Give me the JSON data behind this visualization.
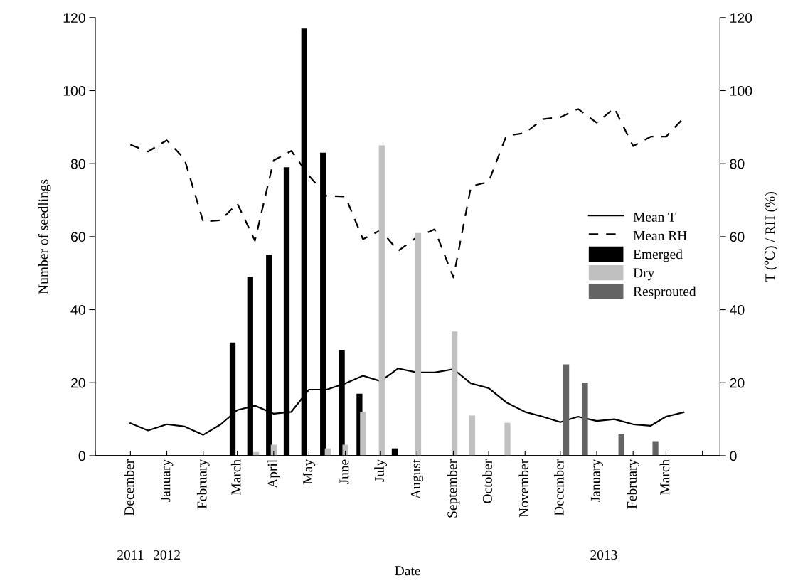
{
  "chart_data": {
    "type": "bar",
    "xlabel": "Date",
    "ylabel": "Number of seedlings",
    "y2label": "T (℃) / RH (%)",
    "xlim": [
      "2011-11-01",
      "2013-04-16"
    ],
    "xticks": [
      {
        "value": "2011-11-01",
        "label": null
      },
      {
        "value": "2011-12-01",
        "label": "December"
      },
      {
        "value": "2012-01-01",
        "label": "January"
      },
      {
        "value": "2012-02-01",
        "label": "February"
      },
      {
        "value": "2012-03-01",
        "label": "March"
      },
      {
        "value": "2012-04-01",
        "label": "April"
      },
      {
        "value": "2012-05-01",
        "label": "May"
      },
      {
        "value": "2012-06-01",
        "label": "June"
      },
      {
        "value": "2012-07-01",
        "label": "July"
      },
      {
        "value": "2012-08-01",
        "label": "August"
      },
      {
        "value": "2012-09-01",
        "label": "September"
      },
      {
        "value": "2012-10-01",
        "label": "October"
      },
      {
        "value": "2012-11-01",
        "label": "November"
      },
      {
        "value": "2012-12-01",
        "label": "December"
      },
      {
        "value": "2013-01-01",
        "label": "January"
      },
      {
        "value": "2013-02-01",
        "label": "February"
      },
      {
        "value": "2013-03-01",
        "label": "March"
      },
      {
        "value": "2013-04-01",
        "label": null
      }
    ],
    "ylim": [
      0,
      120
    ],
    "yticks": [
      0,
      20,
      40,
      60,
      80,
      100,
      120
    ],
    "y2lim": [
      0,
      120
    ],
    "y2ticks": [
      0,
      20,
      40,
      60,
      80,
      100,
      120
    ],
    "legend": "center right",
    "x2lim": [
      "2011-11-01",
      "2013-04-16"
    ],
    "x2ticks": [
      {
        "value": "2011-12-01",
        "label": "2011"
      },
      {
        "value": "2012-01-01",
        "label": "2012"
      },
      {
        "value": "2013-01-07",
        "label": "2013"
      }
    ],
    "series": [
      {
        "name": "Mean T",
        "type": "line",
        "axis": "y2",
        "color": "#000000",
        "line_style": "solid",
        "x": [
          "2011-12-01",
          "2011-12-16",
          "2012-01-01",
          "2012-01-16",
          "2012-02-01",
          "2012-02-16",
          "2012-03-01",
          "2012-03-16",
          "2012-04-01",
          "2012-04-16",
          "2012-05-01",
          "2012-05-16",
          "2012-06-01",
          "2012-06-16",
          "2012-07-01",
          "2012-07-16",
          "2012-08-01",
          "2012-08-16",
          "2012-09-01",
          "2012-09-16",
          "2012-10-01",
          "2012-10-16",
          "2012-11-01",
          "2012-11-16",
          "2012-12-01",
          "2012-12-16",
          "2013-01-01",
          "2013-01-16",
          "2013-02-01",
          "2013-02-16",
          "2013-03-01",
          "2013-03-16"
        ],
        "values": [
          8.9,
          6.9,
          8.6,
          8.0,
          5.7,
          8.6,
          12.5,
          13.7,
          11.5,
          12.0,
          18.1,
          18.1,
          19.8,
          21.9,
          20.4,
          23.9,
          22.8,
          22.8,
          23.7,
          19.8,
          18.5,
          14.6,
          12.0,
          10.7,
          9.2,
          10.7,
          9.5,
          10.0,
          8.6,
          8.2,
          10.7,
          11.9
        ]
      },
      {
        "name": "Mean RH",
        "type": "line",
        "axis": "y2",
        "color": "#000000",
        "line_style": "dashed",
        "x": [
          "2011-12-01",
          "2011-12-16",
          "2012-01-01",
          "2012-01-16",
          "2012-02-01",
          "2012-02-16",
          "2012-03-01",
          "2012-03-16",
          "2012-04-01",
          "2012-04-16",
          "2012-05-01",
          "2012-05-16",
          "2012-06-01",
          "2012-06-16",
          "2012-07-01",
          "2012-07-16",
          "2012-08-01",
          "2012-08-16",
          "2012-09-01",
          "2012-09-16",
          "2012-10-01",
          "2012-10-16",
          "2012-11-01",
          "2012-11-16",
          "2012-12-01",
          "2012-12-16",
          "2013-01-01",
          "2013-01-16",
          "2013-02-01",
          "2013-02-16",
          "2013-03-01",
          "2013-03-16"
        ],
        "values": [
          85.2,
          83.3,
          86.4,
          81.3,
          64.1,
          64.5,
          69.1,
          58.9,
          80.9,
          83.5,
          76.7,
          71.2,
          71.0,
          59.3,
          61.8,
          56.1,
          59.9,
          62.0,
          48.8,
          73.8,
          75.0,
          87.6,
          88.4,
          92.2,
          92.7,
          95.0,
          91.2,
          95.2,
          84.8,
          87.4,
          87.4,
          92.5
        ]
      },
      {
        "name": "Emerged",
        "color": "#000000",
        "x": [
          "2012-02-26",
          "2012-03-12",
          "2012-03-28",
          "2012-04-12",
          "2012-04-27",
          "2012-05-13",
          "2012-05-29",
          "2012-06-13",
          "2012-07-13"
        ],
        "values": [
          31,
          49,
          55,
          79,
          117,
          83,
          29,
          17,
          2
        ]
      },
      {
        "name": "Dry",
        "color": "#c0c0c0",
        "x": [
          "2012-03-17",
          "2012-04-01",
          "2012-05-17",
          "2012-06-01",
          "2012-06-16",
          "2012-07-02",
          "2012-08-02",
          "2012-09-02",
          "2012-09-17",
          "2012-10-17"
        ],
        "values": [
          1,
          3,
          2,
          3,
          12,
          85,
          61,
          34,
          11,
          9
        ]
      },
      {
        "name": "Resprouted",
        "color": "#646464",
        "x": [
          "2012-12-06",
          "2012-12-22",
          "2013-01-22",
          "2013-02-20"
        ],
        "values": [
          25,
          20,
          6,
          4
        ]
      }
    ]
  }
}
